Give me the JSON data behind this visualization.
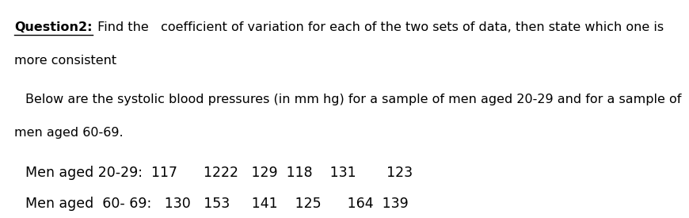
{
  "title_bold": "Question2:",
  "title_normal": " Find the   coefficient of variation for each of the two sets of data, then state which one is",
  "line2": "more consistent",
  "para_line1": "   Below are the systolic blood pressures (in mm hg) for a sample of men aged 20-29 and for a sample of",
  "para_line2": "men aged 60-69.",
  "data_line1": "Men aged 20-29:  117      1222   129  118    131       123",
  "data_line2": "Men aged  60- 69:   130   153     141    125      164  139",
  "bg_color": "#ffffff",
  "font_size": 11.5,
  "data_font_size": 12.5
}
